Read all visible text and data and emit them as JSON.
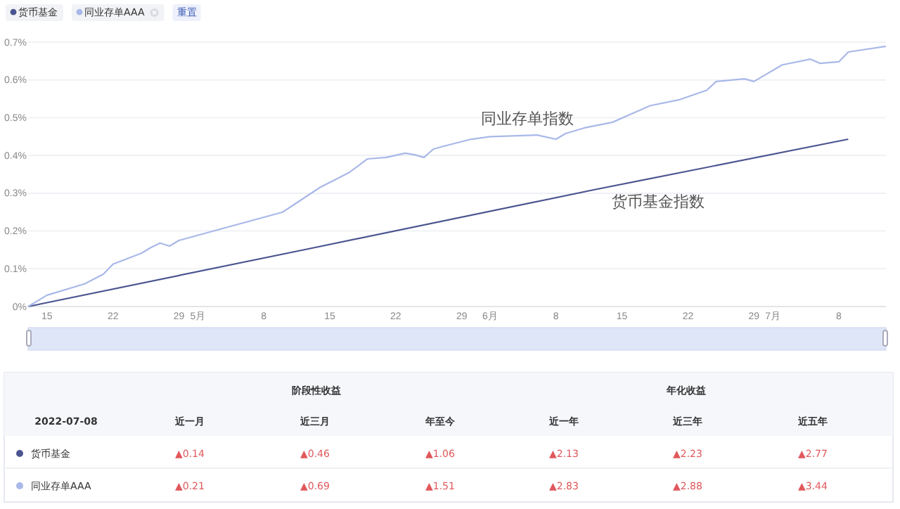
{
  "chart_data": [
    {
      "type": "line",
      "legend": "top left",
      "grid": "y",
      "marker": "none",
      "line_style": "solid",
      "xlim": [
        "2022-04-13",
        "2022-07-13"
      ],
      "xticks": [
        {
          "value": "2022-04-15",
          "label": "15"
        },
        {
          "value": "2022-04-22",
          "label": "22"
        },
        {
          "value": "2022-04-29",
          "label": "29"
        },
        {
          "value": "2022-05-01",
          "label": "5月"
        },
        {
          "value": "2022-05-08",
          "label": "8"
        },
        {
          "value": "2022-05-15",
          "label": "15"
        },
        {
          "value": "2022-05-22",
          "label": "22"
        },
        {
          "value": "2022-05-29",
          "label": "29"
        },
        {
          "value": "2022-06-01",
          "label": "6月"
        },
        {
          "value": "2022-06-08",
          "label": "8"
        },
        {
          "value": "2022-06-15",
          "label": "15"
        },
        {
          "value": "2022-06-22",
          "label": "22"
        },
        {
          "value": "2022-06-29",
          "label": "29"
        },
        {
          "value": "2022-07-01",
          "label": "7月"
        },
        {
          "value": "2022-07-08",
          "label": "8"
        }
      ],
      "ylim": [
        0,
        0.7
      ],
      "yticks": [
        {
          "value": 0,
          "label": "0%"
        },
        {
          "value": 0.1,
          "label": "0.1%"
        },
        {
          "value": 0.2,
          "label": "0.2%"
        },
        {
          "value": 0.3,
          "label": "0.3%"
        },
        {
          "value": 0.4,
          "label": "0.4%"
        },
        {
          "value": 0.5,
          "label": "0.5%"
        },
        {
          "value": 0.6,
          "label": "0.6%"
        },
        {
          "value": 0.7,
          "label": "0.7%"
        }
      ],
      "series": [
        {
          "name": "货币基金",
          "color": "#4a5590",
          "x": [
            "2022-04-13",
            "2022-05-13",
            "2022-06-12",
            "2022-07-09"
          ],
          "values": [
            0,
            0.154,
            0.309,
            0.443
          ]
        },
        {
          "name": "同业存单AAA",
          "color": "#a9b8e8",
          "x": [
            "2022-04-13",
            "2022-04-15",
            "2022-04-19",
            "2022-04-21",
            "2022-04-22",
            "2022-04-25",
            "2022-04-26",
            "2022-04-27",
            "2022-04-28",
            "2022-04-29",
            "2022-05-05",
            "2022-05-10",
            "2022-05-14",
            "2022-05-17",
            "2022-05-18",
            "2022-05-19",
            "2022-05-21",
            "2022-05-23",
            "2022-05-24",
            "2022-05-25",
            "2022-05-26",
            "2022-05-27",
            "2022-05-30",
            "2022-06-01",
            "2022-06-06",
            "2022-06-08",
            "2022-06-09",
            "2022-06-11",
            "2022-06-14",
            "2022-06-16",
            "2022-06-18",
            "2022-06-21",
            "2022-06-24",
            "2022-06-25",
            "2022-06-28",
            "2022-06-29",
            "2022-07-02",
            "2022-07-05",
            "2022-07-06",
            "2022-07-08",
            "2022-07-09",
            "2022-07-13"
          ],
          "values": [
            0,
            0.03,
            0.06,
            0.086,
            0.112,
            0.141,
            0.156,
            0.168,
            0.16,
            0.175,
            0.216,
            0.25,
            0.316,
            0.354,
            0.372,
            0.391,
            0.395,
            0.406,
            0.402,
            0.395,
            0.417,
            0.424,
            0.443,
            0.45,
            0.454,
            0.443,
            0.458,
            0.473,
            0.488,
            0.51,
            0.532,
            0.547,
            0.573,
            0.596,
            0.603,
            0.596,
            0.64,
            0.655,
            0.644,
            0.648,
            0.674,
            0.689
          ]
        }
      ],
      "annotations": [
        "同业存单指数",
        "货币基金指数",
        "重置"
      ]
    },
    {
      "type": "other",
      "annotations": [
        "阶段性收益",
        "年化收益",
        "2022-07-08",
        "近一月",
        "近三月",
        "年至今",
        "近一年",
        "近三年",
        "近五年",
        "货币基金",
        "▲0.14",
        "▲0.46",
        "▲1.06",
        "▲2.13",
        "▲2.23",
        "▲2.77",
        "同业存单AAA",
        "▲0.21",
        "▲0.69",
        "▲1.51",
        "▲2.83",
        "▲2.88",
        "▲3.44"
      ]
    }
  ]
}
